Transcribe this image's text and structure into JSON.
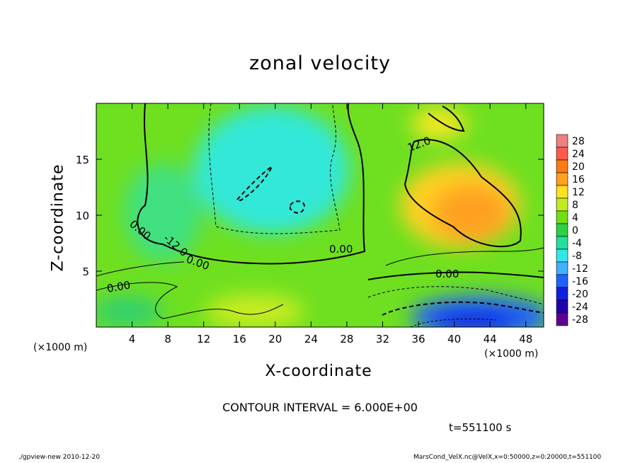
{
  "chart_data": {
    "type": "heatmap",
    "title": "zonal velocity",
    "xlabel": "X-coordinate",
    "ylabel": "Z-coordinate",
    "x_unit": "(×1000 m)",
    "xlim": [
      0,
      50
    ],
    "ylim": [
      0,
      20
    ],
    "x_ticks": [
      4,
      8,
      12,
      16,
      20,
      24,
      28,
      32,
      36,
      40,
      44,
      48
    ],
    "y_ticks": [
      5,
      10,
      15
    ],
    "colorbar": {
      "levels": [
        28,
        24,
        20,
        16,
        12,
        8,
        4,
        0,
        -4,
        -8,
        -12,
        -16,
        -20,
        -24,
        -28
      ],
      "colors": [
        "#f08080",
        "#ff5a4a",
        "#ff7a10",
        "#ffa020",
        "#ffe020",
        "#c0ec20",
        "#70e010",
        "#30d040",
        "#20e0a0",
        "#30e8e8",
        "#40b0ff",
        "#2060ff",
        "#1020e0",
        "#2000b0",
        "#600090"
      ]
    },
    "contour_labels": [
      "12.0",
      "0.00",
      "0.00",
      "0.00",
      "0.00",
      "-12.0",
      "0.00"
    ],
    "contour_interval": "CONTOUR INTERVAL = 6.000E+00",
    "field_features": [
      {
        "name": "positive jet max",
        "x": 42,
        "z": 11,
        "value": 17
      },
      {
        "name": "upper-right positive",
        "x": 37,
        "z": 18.5,
        "value": 12
      },
      {
        "name": "negative core aloft",
        "x": 19,
        "z": 13,
        "value": -12
      },
      {
        "name": "small negative eddy",
        "x": 22.5,
        "z": 10.5,
        "value": -12
      },
      {
        "name": "near-surface negative jet",
        "x": 42,
        "z": 1,
        "value": -22
      }
    ]
  },
  "time": "t=551100 s",
  "footer": {
    "left": "./gpview-new 2010-12-20",
    "right": "MarsCond_VelX.nc@VelX,x=0:50000,z=0:20000,t=551100"
  }
}
